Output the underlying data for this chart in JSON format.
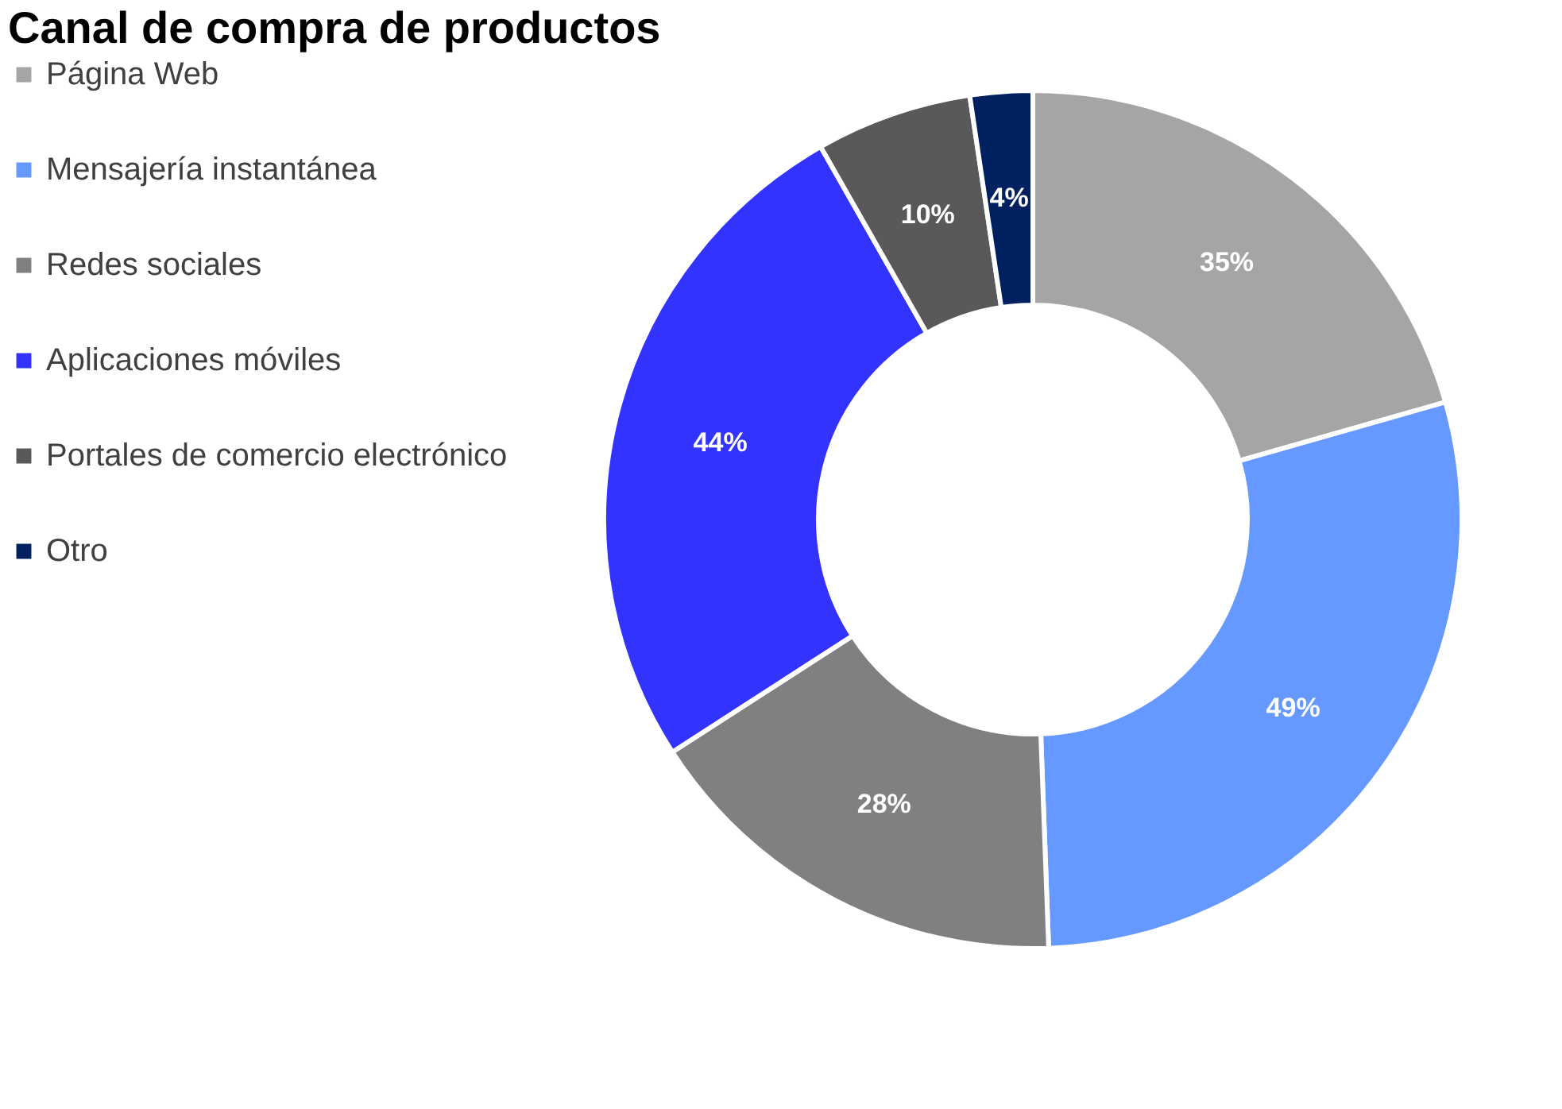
{
  "chart_data": {
    "type": "donut",
    "title": "Canal de compra de productos",
    "categories": [
      "Página Web",
      "Mensajería instantánea",
      "Redes sociales",
      "Aplicaciones móviles",
      "Portales de comercio electrónico",
      "Otro"
    ],
    "values": [
      35,
      49,
      28,
      44,
      10,
      4
    ],
    "colors": [
      "#a5a5a5",
      "#6699ff",
      "#808080",
      "#3333ff",
      "#595959",
      "#002060"
    ],
    "value_labels": [
      "35%",
      "49%",
      "28%",
      "44%",
      "10%",
      "4%"
    ],
    "legend": "left"
  }
}
